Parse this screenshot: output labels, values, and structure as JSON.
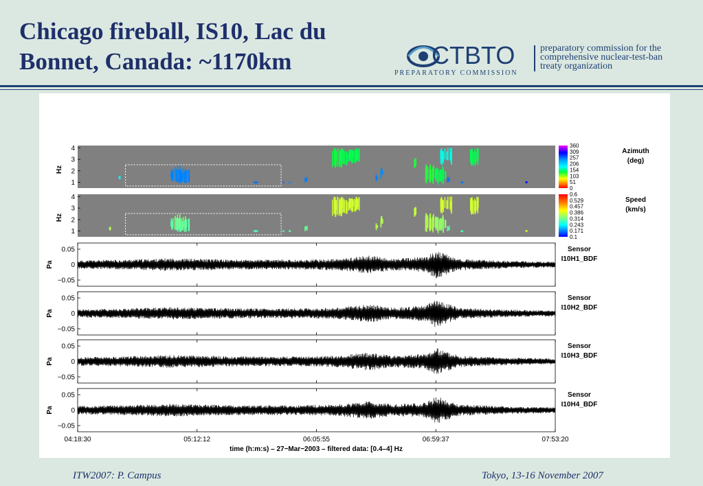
{
  "slide": {
    "title": "Chicago fireball, IS10, Lac du Bonnet, Canada: ~1170km",
    "footer_left": "ITW2007: P. Campus",
    "footer_right": "Tokyo, 13-16 November 2007",
    "logo": {
      "wordmark": "CTBTO",
      "subtitle": "PREPARATORY COMMISSION",
      "description_lines": [
        "preparatory commission for the",
        "comprehensive nuclear-test-ban",
        "treaty organization"
      ]
    }
  },
  "colors": {
    "title": "#1e2f6b",
    "background": "#dbe8e1",
    "rule": "#1e3f73",
    "spectrogram_bg": "#808080",
    "waveform": "#000000"
  },
  "chart_data": [
    {
      "type": "heatmap",
      "name": "azimuth",
      "ylabel": "Hz",
      "yticks": [
        1,
        2,
        3,
        4
      ],
      "colorbar_label": "Azimuth (deg)",
      "colorbar_ticks": [
        "360",
        "309",
        "257",
        "206",
        "154",
        "103",
        "51",
        "0"
      ],
      "time_range": [
        "04:18:30",
        "07:53:20"
      ],
      "highlight_box": {
        "t_start": "04:40:00",
        "t_end": "05:50:00"
      },
      "detections": [
        {
          "t": "04:37:20",
          "f_low": 1.2,
          "f_high": 1.6,
          "value_deg": 180
        },
        {
          "t": "05:02:30",
          "f_low": 0.9,
          "f_high": 2.2,
          "value_deg": 250
        },
        {
          "t": "05:04:30",
          "f_low": 0.9,
          "f_high": 2.5,
          "value_deg": 245
        },
        {
          "t": "05:06:30",
          "f_low": 0.9,
          "f_high": 2.1,
          "value_deg": 250
        },
        {
          "t": "05:38:00",
          "f_low": 0.9,
          "f_high": 1.1,
          "value_deg": 255
        },
        {
          "t": "05:38:50",
          "f_low": 0.9,
          "f_high": 1.1,
          "value_deg": 255
        },
        {
          "t": "05:51:00",
          "f_low": 0.9,
          "f_high": 1.1,
          "value_deg": 255
        },
        {
          "t": "05:53:30",
          "f_low": 0.9,
          "f_high": 1.1,
          "value_deg": 245
        },
        {
          "t": "06:01:00",
          "f_low": 0.9,
          "f_high": 1.5,
          "value_deg": 250
        },
        {
          "t": "06:15:00",
          "f_low": 2.2,
          "f_high": 4.0,
          "value_deg": 135
        },
        {
          "t": "06:19:00",
          "f_low": 2.4,
          "f_high": 4.0,
          "value_deg": 140
        },
        {
          "t": "06:23:00",
          "f_low": 2.6,
          "f_high": 4.0,
          "value_deg": 140
        },
        {
          "t": "06:33:00",
          "f_low": 1.0,
          "f_high": 1.7,
          "value_deg": 250
        },
        {
          "t": "06:35:00",
          "f_low": 1.3,
          "f_high": 2.3,
          "value_deg": 245
        },
        {
          "t": "06:50:00",
          "f_low": 2.2,
          "f_high": 3.1,
          "value_deg": 130
        },
        {
          "t": "06:57:00",
          "f_low": 0.8,
          "f_high": 2.6,
          "value_deg": 130
        },
        {
          "t": "07:01:30",
          "f_low": 0.8,
          "f_high": 2.4,
          "value_deg": 140
        },
        {
          "t": "07:04:00",
          "f_low": 2.5,
          "f_high": 4.0,
          "value_deg": 175
        },
        {
          "t": "07:05:00",
          "f_low": 0.9,
          "f_high": 1.5,
          "value_deg": 255
        },
        {
          "t": "07:11:00",
          "f_low": 0.9,
          "f_high": 1.1,
          "value_deg": 255
        },
        {
          "t": "07:17:00",
          "f_low": 2.4,
          "f_high": 4.0,
          "value_deg": 140
        },
        {
          "t": "07:40:00",
          "f_low": 0.9,
          "f_high": 1.1,
          "value_deg": 300
        }
      ]
    },
    {
      "type": "heatmap",
      "name": "speed",
      "ylabel": "Hz",
      "yticks": [
        1,
        2,
        3,
        4
      ],
      "colorbar_label": "Speed (km/s)",
      "colorbar_ticks": [
        "0.6",
        "0.529",
        "0.457",
        "0.386",
        "0.314",
        "0.243",
        "0.171",
        "0.1"
      ],
      "time_range": [
        "04:18:30",
        "07:53:20"
      ],
      "highlight_box": {
        "t_start": "04:40:00",
        "t_end": "05:50:00"
      },
      "detections": [
        {
          "t": "04:33:00",
          "f_low": 1.0,
          "f_high": 1.4,
          "value_kms": 0.36
        },
        {
          "t": "05:02:30",
          "f_low": 0.9,
          "f_high": 2.2,
          "value_kms": 0.3
        },
        {
          "t": "05:04:30",
          "f_low": 0.9,
          "f_high": 2.5,
          "value_kms": 0.33
        },
        {
          "t": "05:06:30",
          "f_low": 0.9,
          "f_high": 2.1,
          "value_kms": 0.3
        },
        {
          "t": "05:38:00",
          "f_low": 0.9,
          "f_high": 1.1,
          "value_kms": 0.29
        },
        {
          "t": "05:38:50",
          "f_low": 0.9,
          "f_high": 1.1,
          "value_kms": 0.29
        },
        {
          "t": "05:51:00",
          "f_low": 0.9,
          "f_high": 1.1,
          "value_kms": 0.29
        },
        {
          "t": "05:53:30",
          "f_low": 0.9,
          "f_high": 1.1,
          "value_kms": 0.3
        },
        {
          "t": "06:01:00",
          "f_low": 0.9,
          "f_high": 1.5,
          "value_kms": 0.31
        },
        {
          "t": "06:15:00",
          "f_low": 2.2,
          "f_high": 4.0,
          "value_kms": 0.38
        },
        {
          "t": "06:19:00",
          "f_low": 2.4,
          "f_high": 4.0,
          "value_kms": 0.38
        },
        {
          "t": "06:23:00",
          "f_low": 2.6,
          "f_high": 4.0,
          "value_kms": 0.38
        },
        {
          "t": "06:33:00",
          "f_low": 1.0,
          "f_high": 1.7,
          "value_kms": 0.36
        },
        {
          "t": "06:35:00",
          "f_low": 1.3,
          "f_high": 2.3,
          "value_kms": 0.36
        },
        {
          "t": "06:50:00",
          "f_low": 2.2,
          "f_high": 3.1,
          "value_kms": 0.37
        },
        {
          "t": "06:57:00",
          "f_low": 0.8,
          "f_high": 2.6,
          "value_kms": 0.36
        },
        {
          "t": "07:01:30",
          "f_low": 0.8,
          "f_high": 2.4,
          "value_kms": 0.34
        },
        {
          "t": "07:04:00",
          "f_low": 2.5,
          "f_high": 4.0,
          "value_kms": 0.38
        },
        {
          "t": "07:05:00",
          "f_low": 0.9,
          "f_high": 1.5,
          "value_kms": 0.3
        },
        {
          "t": "07:11:00",
          "f_low": 0.9,
          "f_high": 1.1,
          "value_kms": 0.29
        },
        {
          "t": "07:17:00",
          "f_low": 2.4,
          "f_high": 4.0,
          "value_kms": 0.38
        },
        {
          "t": "07:40:00",
          "f_low": 0.9,
          "f_high": 1.1,
          "value_kms": 0.38
        }
      ]
    },
    {
      "type": "line",
      "name": "waveforms",
      "ylabel": "Pa",
      "ylim": [
        -0.07,
        0.07
      ],
      "yticks": [
        "0.05",
        "0",
        "−0.05"
      ],
      "xlabel": "time (h:m:s) – 27−Mar−2003 – filtered data: [0.4–4] Hz",
      "xtick_labels": [
        "04:18:30",
        "05:12:12",
        "06:05:55",
        "06:59:37",
        "07:53:20"
      ],
      "envelope_peak_amplitude_pa": [
        {
          "t": "04:18:30",
          "amp": 0.012
        },
        {
          "t": "04:40:00",
          "amp": 0.014
        },
        {
          "t": "05:00:00",
          "amp": 0.018
        },
        {
          "t": "05:30:00",
          "amp": 0.014
        },
        {
          "t": "06:00:00",
          "amp": 0.014
        },
        {
          "t": "06:15:00",
          "amp": 0.016
        },
        {
          "t": "06:30:00",
          "amp": 0.026
        },
        {
          "t": "06:40:00",
          "amp": 0.016
        },
        {
          "t": "06:55:00",
          "amp": 0.022
        },
        {
          "t": "06:59:37",
          "amp": 0.04
        },
        {
          "t": "07:10:00",
          "amp": 0.016
        },
        {
          "t": "07:30:00",
          "amp": 0.011
        },
        {
          "t": "07:53:20",
          "amp": 0.008
        }
      ],
      "series": [
        {
          "sensor_label": "Sensor",
          "name": "I10H1_BDF"
        },
        {
          "sensor_label": "Sensor",
          "name": "I10H2_BDF"
        },
        {
          "sensor_label": "Sensor",
          "name": "I10H3_BDF"
        },
        {
          "sensor_label": "Sensor",
          "name": "I10H4_BDF"
        }
      ]
    }
  ]
}
